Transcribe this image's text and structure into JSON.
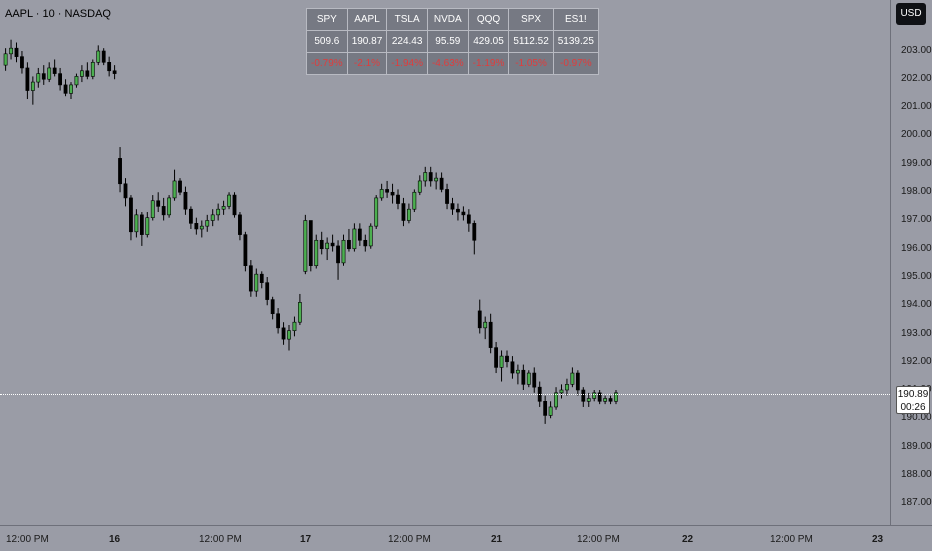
{
  "header": {
    "title": "AAPL · 10 · NASDAQ",
    "currency_button": "USD"
  },
  "quote_table": {
    "symbols": [
      "SPY",
      "AAPL",
      "TSLA",
      "NVDA",
      "QQQ",
      "SPX",
      "ES1!"
    ],
    "prices": [
      "509.6",
      "190.87",
      "224.43",
      "95.59",
      "429.05",
      "5112.52",
      "5139.25"
    ],
    "changes": [
      "-0.79%",
      "-2.1%",
      "-1.94%",
      "-4.63%",
      "-1.19%",
      "-1.05%",
      "-0.97%"
    ]
  },
  "price_axis": {
    "ticks": [
      "203.00",
      "202.00",
      "201.00",
      "200.00",
      "199.00",
      "198.00",
      "197.00",
      "196.00",
      "195.00",
      "194.00",
      "193.00",
      "192.00",
      "191.00",
      "190.00",
      "189.00",
      "188.00",
      "187.00"
    ],
    "current_price": "190.89",
    "countdown": "00:26"
  },
  "time_axis": {
    "ticks": [
      "12:00 PM",
      "16",
      "12:00 PM",
      "17",
      "12:00 PM",
      "21",
      "12:00 PM",
      "22",
      "12:00 PM",
      "23"
    ]
  },
  "colors": {
    "up": "#4caf50",
    "down": "#000000",
    "background": "#9a9ca6",
    "change_negative": "#e03c3c"
  },
  "chart_data": {
    "type": "candlestick",
    "interval": "10",
    "price_range": [
      186.5,
      204.5
    ],
    "candles": [
      {
        "o": 202.5,
        "h": 203.1,
        "l": 202.3,
        "c": 202.9
      },
      {
        "o": 202.9,
        "h": 203.4,
        "l": 202.7,
        "c": 203.1
      },
      {
        "o": 203.1,
        "h": 203.3,
        "l": 202.6,
        "c": 202.8
      },
      {
        "o": 202.8,
        "h": 203.0,
        "l": 202.2,
        "c": 202.4
      },
      {
        "o": 202.4,
        "h": 202.6,
        "l": 201.3,
        "c": 201.6
      },
      {
        "o": 201.6,
        "h": 202.1,
        "l": 201.1,
        "c": 201.9
      },
      {
        "o": 201.9,
        "h": 202.4,
        "l": 201.7,
        "c": 202.2
      },
      {
        "o": 202.2,
        "h": 202.5,
        "l": 201.8,
        "c": 202.0
      },
      {
        "o": 202.0,
        "h": 202.6,
        "l": 201.9,
        "c": 202.4
      },
      {
        "o": 202.4,
        "h": 202.7,
        "l": 202.1,
        "c": 202.2
      },
      {
        "o": 202.2,
        "h": 202.4,
        "l": 201.6,
        "c": 201.8
      },
      {
        "o": 201.8,
        "h": 202.0,
        "l": 201.4,
        "c": 201.5
      },
      {
        "o": 201.5,
        "h": 201.9,
        "l": 201.3,
        "c": 201.8
      },
      {
        "o": 201.8,
        "h": 202.2,
        "l": 201.7,
        "c": 202.1
      },
      {
        "o": 202.1,
        "h": 202.5,
        "l": 201.9,
        "c": 202.3
      },
      {
        "o": 202.3,
        "h": 202.6,
        "l": 202.0,
        "c": 202.1
      },
      {
        "o": 202.1,
        "h": 202.7,
        "l": 202.0,
        "c": 202.6
      },
      {
        "o": 202.6,
        "h": 203.2,
        "l": 202.5,
        "c": 203.0
      },
      {
        "o": 203.0,
        "h": 203.1,
        "l": 202.5,
        "c": 202.6
      },
      {
        "o": 202.6,
        "h": 202.8,
        "l": 202.1,
        "c": 202.3
      },
      {
        "o": 202.3,
        "h": 202.5,
        "l": 202.0,
        "c": 202.2
      },
      {
        "o": 199.2,
        "h": 199.6,
        "l": 198.0,
        "c": 198.3
      },
      {
        "o": 198.3,
        "h": 198.5,
        "l": 197.5,
        "c": 197.8
      },
      {
        "o": 197.8,
        "h": 197.9,
        "l": 196.3,
        "c": 196.6
      },
      {
        "o": 196.6,
        "h": 197.4,
        "l": 196.4,
        "c": 197.2
      },
      {
        "o": 197.2,
        "h": 197.3,
        "l": 196.1,
        "c": 196.5
      },
      {
        "o": 196.5,
        "h": 197.3,
        "l": 196.4,
        "c": 197.1
      },
      {
        "o": 197.1,
        "h": 197.9,
        "l": 197.0,
        "c": 197.7
      },
      {
        "o": 197.7,
        "h": 198.0,
        "l": 197.3,
        "c": 197.5
      },
      {
        "o": 197.5,
        "h": 197.8,
        "l": 197.0,
        "c": 197.2
      },
      {
        "o": 197.2,
        "h": 197.9,
        "l": 197.1,
        "c": 197.8
      },
      {
        "o": 197.8,
        "h": 198.8,
        "l": 197.7,
        "c": 198.4
      },
      {
        "o": 198.4,
        "h": 198.5,
        "l": 197.9,
        "c": 198.0
      },
      {
        "o": 198.0,
        "h": 198.2,
        "l": 197.2,
        "c": 197.4
      },
      {
        "o": 197.4,
        "h": 197.5,
        "l": 196.7,
        "c": 196.9
      },
      {
        "o": 196.9,
        "h": 197.1,
        "l": 196.5,
        "c": 196.7
      },
      {
        "o": 196.7,
        "h": 197.0,
        "l": 196.4,
        "c": 196.8
      },
      {
        "o": 196.8,
        "h": 197.2,
        "l": 196.6,
        "c": 197.0
      },
      {
        "o": 197.0,
        "h": 197.4,
        "l": 196.8,
        "c": 197.2
      },
      {
        "o": 197.2,
        "h": 197.6,
        "l": 197.0,
        "c": 197.4
      },
      {
        "o": 197.4,
        "h": 197.7,
        "l": 197.2,
        "c": 197.5
      },
      {
        "o": 197.5,
        "h": 198.0,
        "l": 197.4,
        "c": 197.9
      },
      {
        "o": 197.9,
        "h": 198.0,
        "l": 197.1,
        "c": 197.2
      },
      {
        "o": 197.2,
        "h": 197.3,
        "l": 196.3,
        "c": 196.5
      },
      {
        "o": 196.5,
        "h": 196.6,
        "l": 195.2,
        "c": 195.4
      },
      {
        "o": 195.4,
        "h": 195.6,
        "l": 194.3,
        "c": 194.5
      },
      {
        "o": 194.5,
        "h": 195.3,
        "l": 194.3,
        "c": 195.1
      },
      {
        "o": 195.1,
        "h": 195.2,
        "l": 194.6,
        "c": 194.8
      },
      {
        "o": 194.8,
        "h": 195.0,
        "l": 194.0,
        "c": 194.2
      },
      {
        "o": 194.2,
        "h": 194.3,
        "l": 193.5,
        "c": 193.7
      },
      {
        "o": 193.7,
        "h": 193.9,
        "l": 193.0,
        "c": 193.2
      },
      {
        "o": 193.2,
        "h": 193.4,
        "l": 192.6,
        "c": 192.8
      },
      {
        "o": 192.8,
        "h": 193.3,
        "l": 192.4,
        "c": 193.1
      },
      {
        "o": 193.1,
        "h": 193.6,
        "l": 192.9,
        "c": 193.4
      },
      {
        "o": 193.4,
        "h": 194.4,
        "l": 193.3,
        "c": 194.1
      },
      {
        "o": 195.2,
        "h": 197.2,
        "l": 195.1,
        "c": 197.0
      },
      {
        "o": 197.0,
        "h": 197.0,
        "l": 195.2,
        "c": 195.4
      },
      {
        "o": 195.4,
        "h": 196.5,
        "l": 195.3,
        "c": 196.3
      },
      {
        "o": 196.3,
        "h": 196.6,
        "l": 195.8,
        "c": 196.0
      },
      {
        "o": 196.0,
        "h": 196.4,
        "l": 195.6,
        "c": 196.2
      },
      {
        "o": 196.2,
        "h": 196.5,
        "l": 195.9,
        "c": 196.1
      },
      {
        "o": 196.1,
        "h": 196.3,
        "l": 194.9,
        "c": 195.5
      },
      {
        "o": 195.5,
        "h": 196.5,
        "l": 195.4,
        "c": 196.3
      },
      {
        "o": 196.3,
        "h": 196.7,
        "l": 195.9,
        "c": 196.0
      },
      {
        "o": 196.0,
        "h": 196.9,
        "l": 195.9,
        "c": 196.7
      },
      {
        "o": 196.7,
        "h": 196.9,
        "l": 196.1,
        "c": 196.3
      },
      {
        "o": 196.3,
        "h": 196.5,
        "l": 195.9,
        "c": 196.1
      },
      {
        "o": 196.1,
        "h": 196.9,
        "l": 196.0,
        "c": 196.8
      },
      {
        "o": 196.8,
        "h": 197.9,
        "l": 196.7,
        "c": 197.8
      },
      {
        "o": 197.8,
        "h": 198.3,
        "l": 197.7,
        "c": 198.1
      },
      {
        "o": 198.1,
        "h": 198.4,
        "l": 197.8,
        "c": 198.0
      },
      {
        "o": 198.0,
        "h": 198.3,
        "l": 197.6,
        "c": 197.9
      },
      {
        "o": 197.9,
        "h": 198.1,
        "l": 197.4,
        "c": 197.6
      },
      {
        "o": 197.6,
        "h": 197.8,
        "l": 196.8,
        "c": 197.0
      },
      {
        "o": 197.0,
        "h": 197.6,
        "l": 196.9,
        "c": 197.4
      },
      {
        "o": 197.4,
        "h": 198.1,
        "l": 197.3,
        "c": 198.0
      },
      {
        "o": 198.0,
        "h": 198.6,
        "l": 197.9,
        "c": 198.4
      },
      {
        "o": 198.4,
        "h": 198.9,
        "l": 198.2,
        "c": 198.7
      },
      {
        "o": 198.7,
        "h": 198.9,
        "l": 198.2,
        "c": 198.4
      },
      {
        "o": 198.4,
        "h": 198.7,
        "l": 198.1,
        "c": 198.5
      },
      {
        "o": 198.5,
        "h": 198.7,
        "l": 198.0,
        "c": 198.1
      },
      {
        "o": 198.1,
        "h": 198.3,
        "l": 197.4,
        "c": 197.6
      },
      {
        "o": 197.6,
        "h": 197.8,
        "l": 197.2,
        "c": 197.4
      },
      {
        "o": 197.4,
        "h": 197.6,
        "l": 197.0,
        "c": 197.3
      },
      {
        "o": 197.3,
        "h": 197.5,
        "l": 197.0,
        "c": 197.2
      },
      {
        "o": 197.2,
        "h": 197.4,
        "l": 196.6,
        "c": 196.9
      },
      {
        "o": 196.9,
        "h": 197.0,
        "l": 195.8,
        "c": 196.3
      },
      {
        "o": 193.8,
        "h": 194.2,
        "l": 193.0,
        "c": 193.2
      },
      {
        "o": 193.2,
        "h": 193.6,
        "l": 192.8,
        "c": 193.4
      },
      {
        "o": 193.4,
        "h": 193.7,
        "l": 192.3,
        "c": 192.5
      },
      {
        "o": 192.5,
        "h": 192.7,
        "l": 191.6,
        "c": 191.8
      },
      {
        "o": 191.8,
        "h": 192.4,
        "l": 191.3,
        "c": 192.2
      },
      {
        "o": 192.2,
        "h": 192.4,
        "l": 191.8,
        "c": 192.0
      },
      {
        "o": 192.0,
        "h": 192.2,
        "l": 191.4,
        "c": 191.6
      },
      {
        "o": 191.6,
        "h": 191.9,
        "l": 191.2,
        "c": 191.7
      },
      {
        "o": 191.7,
        "h": 191.9,
        "l": 191.0,
        "c": 191.2
      },
      {
        "o": 191.2,
        "h": 191.7,
        "l": 191.1,
        "c": 191.6
      },
      {
        "o": 191.6,
        "h": 191.8,
        "l": 190.9,
        "c": 191.1
      },
      {
        "o": 191.1,
        "h": 191.3,
        "l": 190.4,
        "c": 190.6
      },
      {
        "o": 190.6,
        "h": 190.8,
        "l": 189.8,
        "c": 190.1
      },
      {
        "o": 190.1,
        "h": 190.6,
        "l": 190.0,
        "c": 190.4
      },
      {
        "o": 190.4,
        "h": 191.1,
        "l": 190.3,
        "c": 190.9
      },
      {
        "o": 190.9,
        "h": 191.2,
        "l": 190.7,
        "c": 191.0
      },
      {
        "o": 191.0,
        "h": 191.4,
        "l": 190.8,
        "c": 191.2
      },
      {
        "o": 191.2,
        "h": 191.8,
        "l": 191.1,
        "c": 191.6
      },
      {
        "o": 191.6,
        "h": 191.7,
        "l": 190.8,
        "c": 191.0
      },
      {
        "o": 191.0,
        "h": 191.1,
        "l": 190.4,
        "c": 190.6
      },
      {
        "o": 190.6,
        "h": 190.9,
        "l": 190.4,
        "c": 190.7
      },
      {
        "o": 190.7,
        "h": 191.0,
        "l": 190.6,
        "c": 190.9
      },
      {
        "o": 190.9,
        "h": 191.0,
        "l": 190.5,
        "c": 190.6
      },
      {
        "o": 190.6,
        "h": 190.8,
        "l": 190.5,
        "c": 190.7
      },
      {
        "o": 190.7,
        "h": 190.8,
        "l": 190.5,
        "c": 190.6
      },
      {
        "o": 190.6,
        "h": 191.0,
        "l": 190.5,
        "c": 190.9
      }
    ]
  }
}
